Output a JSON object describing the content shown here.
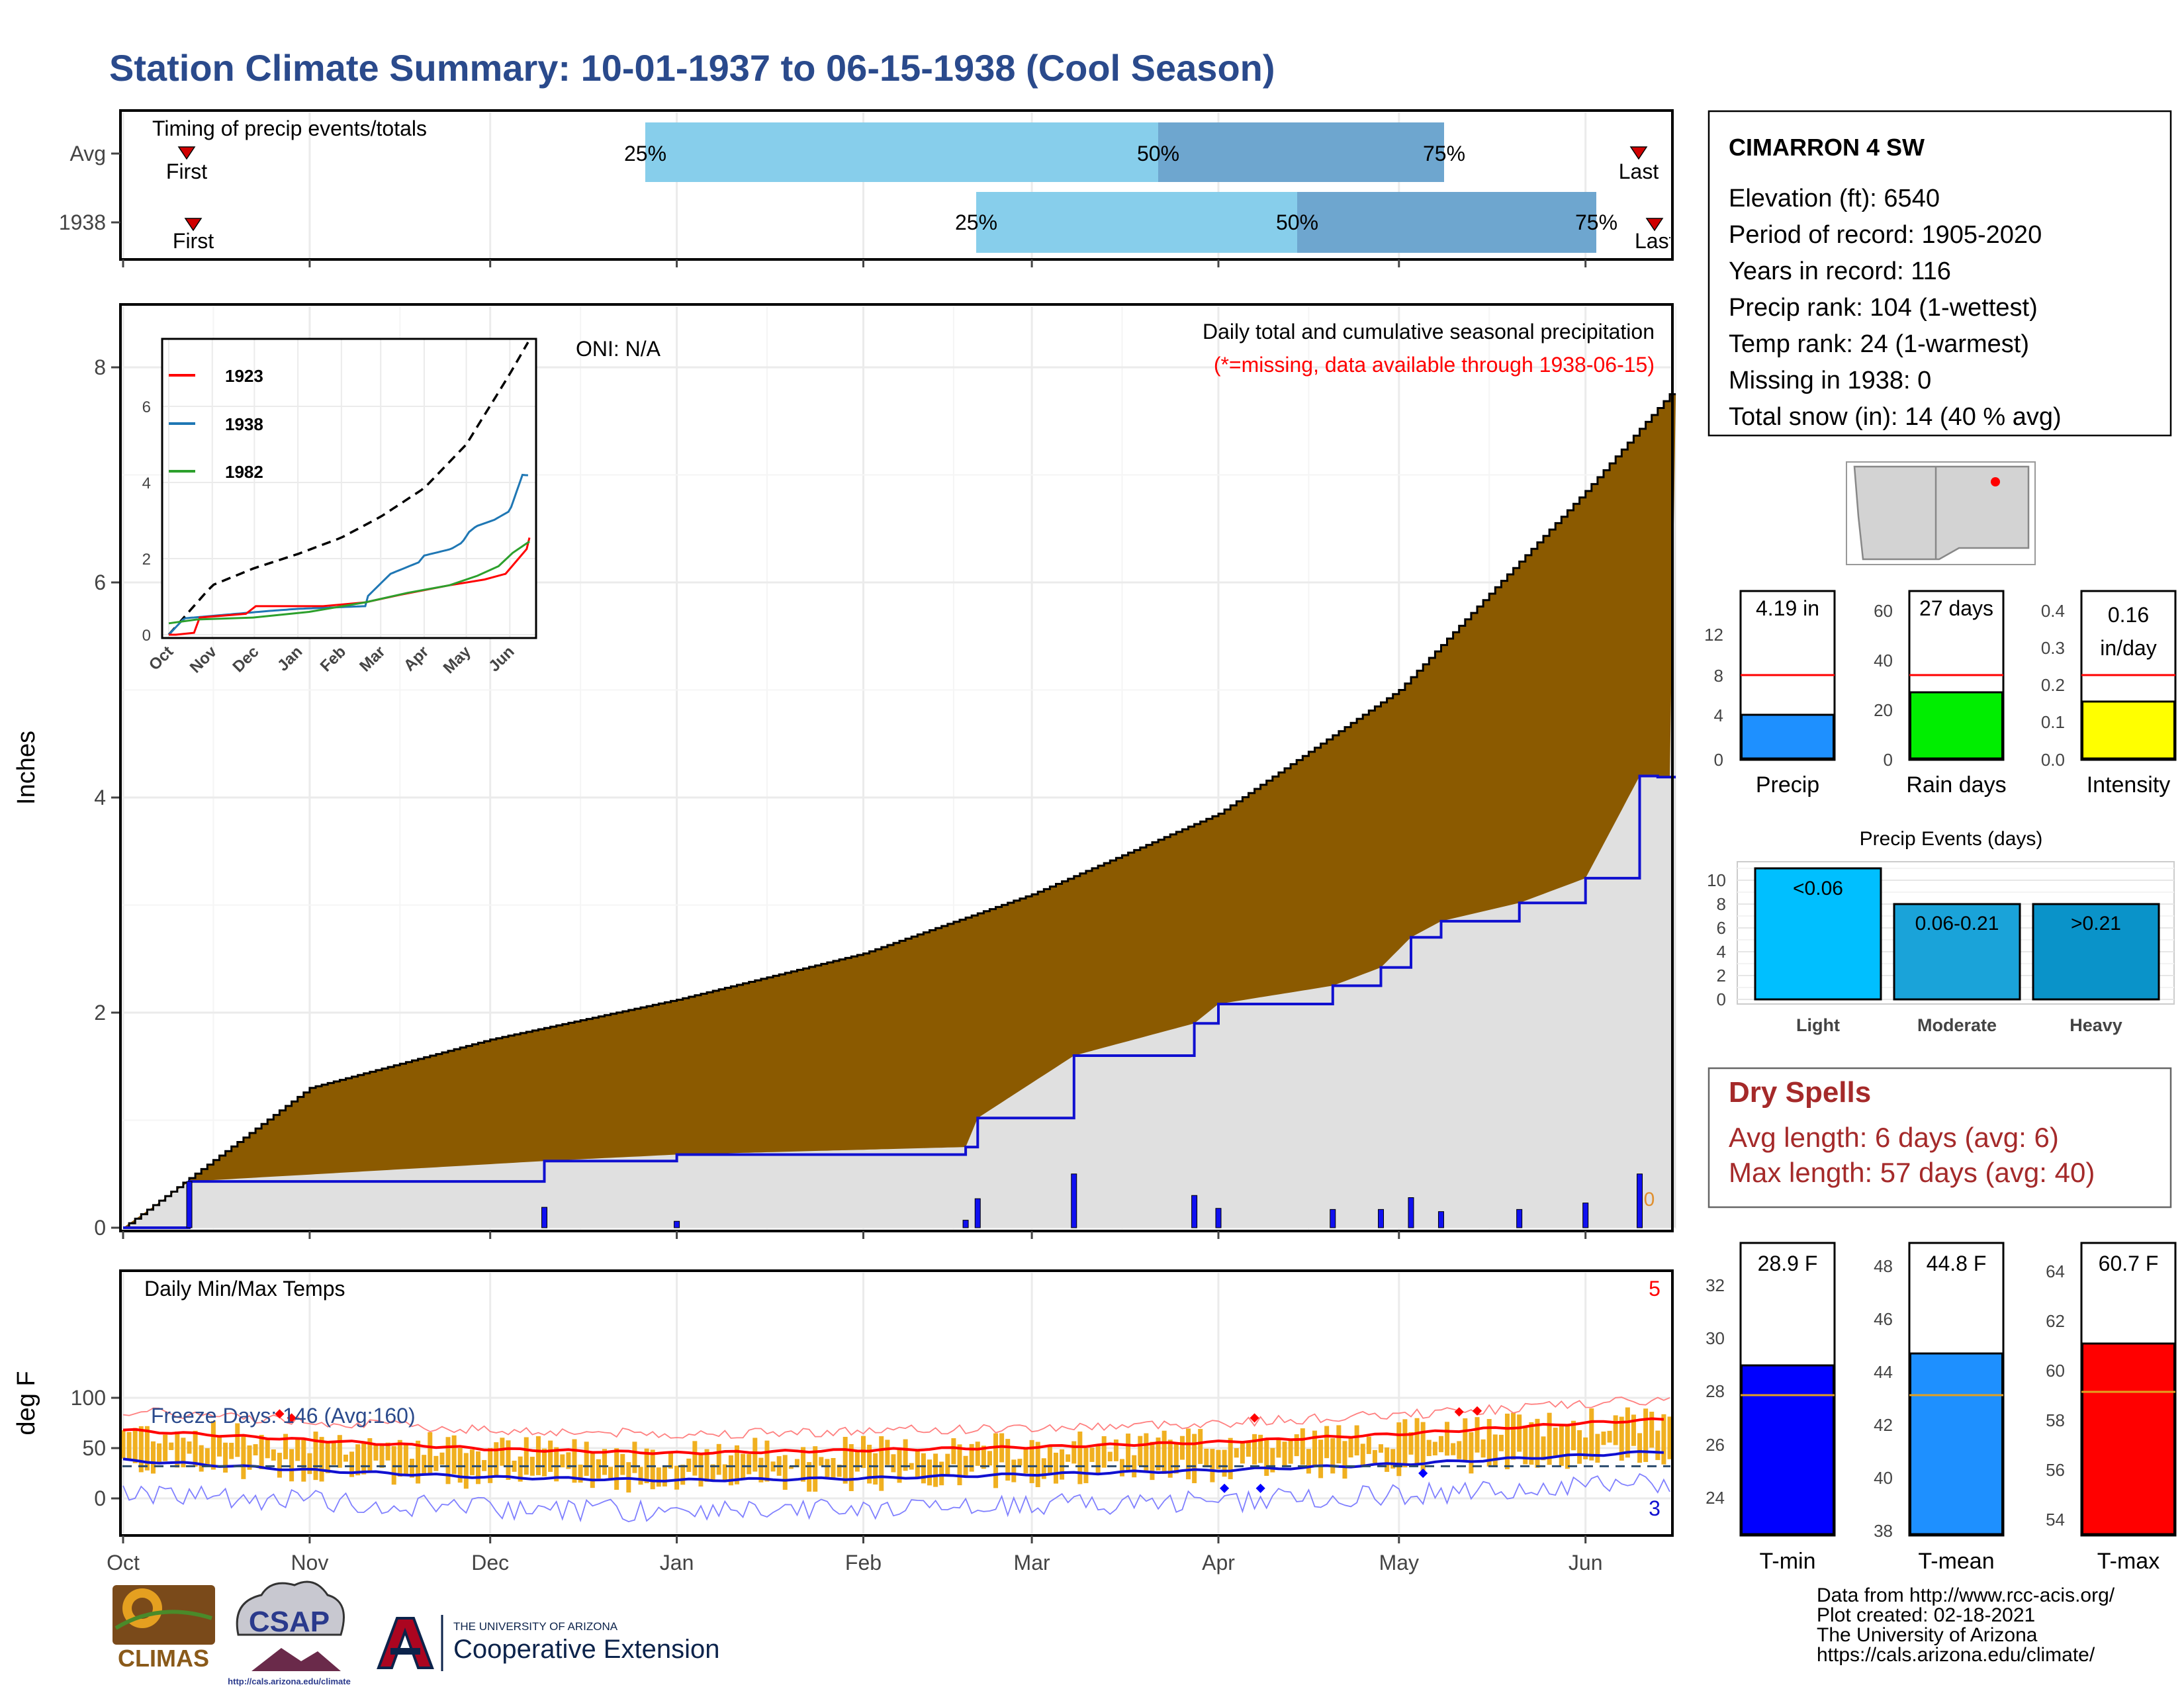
{
  "title": "Station Climate Summary: 10-01-1937 to 06-15-1938 (Cool Season)",
  "colors": {
    "title": "#2a4a8c",
    "precip_fill": "#8b5a00",
    "precip_line": "#1010d0",
    "light_gray": "#e0e0e0",
    "temp_bar": "#f0b020",
    "tmax_line": "#ff0000",
    "tmin_line": "#1010d0",
    "dry": "#a52a2a"
  },
  "station": {
    "name": "CIMARRON 4 SW",
    "lines": [
      "Elevation (ft): 6540",
      "Period of record: 1905-2020",
      "Years in record: 116",
      "Precip rank: 104 (1-wettest)",
      "Temp rank: 24 (1-warmest)",
      "Missing in 1938: 0",
      "Total snow (in): 14 (40 % avg)"
    ]
  },
  "timing_panel": {
    "label": "Timing of precip events/totals",
    "rows": [
      {
        "name": "Avg",
        "first": "First",
        "last": "Last",
        "p25": "25%",
        "p50": "50%",
        "p75": "75%"
      },
      {
        "name": "1938",
        "first": "First",
        "last": "Last",
        "p25": "25%",
        "p50": "50%",
        "p75": "75%"
      }
    ]
  },
  "main_panel": {
    "oni": "ONI: N/A",
    "caption": "Daily total and cumulative seasonal precipitation",
    "missing_note": "(*=missing, data available through 1938-06-15)",
    "ylabel": "Inches",
    "yticks": [
      "0",
      "2",
      "4",
      "6",
      "8"
    ],
    "zero_marker": "0"
  },
  "inset": {
    "legend": [
      "1923",
      "1938",
      "1982"
    ],
    "yticks": [
      "0",
      "2",
      "4",
      "6"
    ],
    "months": [
      "Oct",
      "Nov",
      "Dec",
      "Jan",
      "Feb",
      "Mar",
      "Apr",
      "May",
      "Jun"
    ]
  },
  "temp_panel": {
    "label": "Daily Min/Max Temps",
    "ylabel": "deg F",
    "yticks": [
      "0",
      "50",
      "100"
    ],
    "freeze": "Freeze Days: 146 (Avg:160)",
    "rec_high": "5",
    "rec_low": "3"
  },
  "x_months": [
    "Oct",
    "Nov",
    "Dec",
    "Jan",
    "Feb",
    "Mar",
    "Apr",
    "May",
    "Jun"
  ],
  "stat_precip": {
    "precip": {
      "value": "4.19 in",
      "label": "Precip",
      "ticks": [
        "0",
        "4",
        "8",
        "12"
      ]
    },
    "rain_days": {
      "value": "27 days",
      "label": "Rain days",
      "ticks": [
        "0",
        "20",
        "40",
        "60"
      ]
    },
    "intensity": {
      "value_top": "0.16",
      "value_bottom": "in/day",
      "label": "Intensity",
      "ticks": [
        "0.0",
        "0.1",
        "0.2",
        "0.3",
        "0.4"
      ]
    }
  },
  "events": {
    "title": "Precip Events (days)",
    "ticks": [
      "0",
      "2",
      "4",
      "6",
      "8",
      "10"
    ],
    "bars": [
      {
        "label": "<0.06",
        "name": "Light"
      },
      {
        "label": "0.06-0.21",
        "name": "Moderate"
      },
      {
        "label": ">0.21",
        "name": "Heavy"
      }
    ]
  },
  "dry_spells": {
    "title": "Dry Spells",
    "avg": "Avg length: 6 days (avg: 6)",
    "max": "Max length: 57 days (avg: 40)"
  },
  "stat_temp": {
    "tmin": {
      "value": "28.9 F",
      "label": "T-min",
      "ticks": [
        "24",
        "26",
        "28",
        "30",
        "32"
      ]
    },
    "tmean": {
      "value": "44.8 F",
      "label": "T-mean",
      "ticks": [
        "38",
        "40",
        "42",
        "44",
        "46",
        "48"
      ]
    },
    "tmax": {
      "value": "60.7 F",
      "label": "T-max",
      "ticks": [
        "54",
        "56",
        "58",
        "60",
        "62",
        "64"
      ]
    }
  },
  "footer": {
    "lines": [
      "Data from http://www.rcc-acis.org/",
      "Plot created: 02-18-2021",
      "The University of Arizona",
      "https://cals.arizona.edu/climate/"
    ],
    "climas": "CLIMAS",
    "csap": "CSAP",
    "csap_url": "http://cals.arizona.edu/climate",
    "ua_small": "THE UNIVERSITY OF ARIZONA",
    "ua_big": "Cooperative Extension"
  },
  "chart_data": [
    {
      "type": "area",
      "title": "Daily total and cumulative seasonal precipitation",
      "ylabel": "Inches",
      "ylim": [
        0,
        8.5
      ],
      "series": [
        {
          "name": "average cumulative precipitation",
          "x": [
            "Oct 1",
            "Nov 1",
            "Dec 1",
            "Jan 1",
            "Feb 1",
            "Mar 1",
            "Apr 1",
            "May 1",
            "Jun 1",
            "Jun 15"
          ],
          "values": [
            0.0,
            1.3,
            1.75,
            2.12,
            2.55,
            3.1,
            3.85,
            5.0,
            6.85,
            7.75
          ]
        },
        {
          "name": "1938 cumulative precipitation",
          "x": [
            "Oct 1",
            "Oct 12",
            "Dec 10",
            "Jan 1",
            "Feb 18",
            "Feb 20",
            "Mar 8",
            "Mar 28",
            "Apr 1",
            "Apr 20",
            "Apr 28",
            "May 3",
            "May 8",
            "May 21",
            "Jun 1",
            "Jun 10",
            "Jun 13",
            "Jun 15"
          ],
          "values": [
            0.0,
            0.43,
            0.62,
            0.68,
            0.75,
            1.02,
            1.6,
            1.9,
            2.08,
            2.25,
            2.42,
            2.7,
            2.85,
            3.02,
            3.25,
            4.2,
            4.19,
            4.19
          ]
        }
      ]
    },
    {
      "type": "line",
      "title": "Daily Min/Max Temps",
      "ylabel": "deg F",
      "ylim": [
        -35,
        100
      ],
      "series": [
        {
          "name": "normal max",
          "x": [
            "Oct 1",
            "Nov 1",
            "Dec 1",
            "Jan 1",
            "Feb 1",
            "Mar 1",
            "Apr 1",
            "May 1",
            "Jun 1",
            "Jun 15"
          ],
          "values": [
            68,
            58,
            49,
            45,
            48,
            51,
            56,
            64,
            75,
            79
          ]
        },
        {
          "name": "normal min",
          "x": [
            "Oct 1",
            "Nov 1",
            "Dec 1",
            "Jan 1",
            "Feb 1",
            "Mar 1",
            "Apr 1",
            "May 1",
            "Jun 1",
            "Jun 15"
          ],
          "values": [
            38,
            28,
            21,
            18,
            20,
            24,
            28,
            34,
            43,
            47
          ]
        }
      ]
    },
    {
      "type": "bar",
      "categories": [
        "Precip",
        "Rain days",
        "Intensity"
      ],
      "values": [
        4.19,
        27,
        0.16
      ],
      "averages": [
        8.0,
        33,
        0.23
      ]
    },
    {
      "type": "bar",
      "title": "Precip Events (days)",
      "categories": [
        "Light",
        "Moderate",
        "Heavy"
      ],
      "values": [
        11,
        8,
        8
      ]
    },
    {
      "type": "bar",
      "categories": [
        "T-min",
        "T-mean",
        "T-max"
      ],
      "values": [
        28.9,
        44.8,
        60.7
      ],
      "averages": [
        27.8,
        43.4,
        58.8
      ]
    }
  ]
}
